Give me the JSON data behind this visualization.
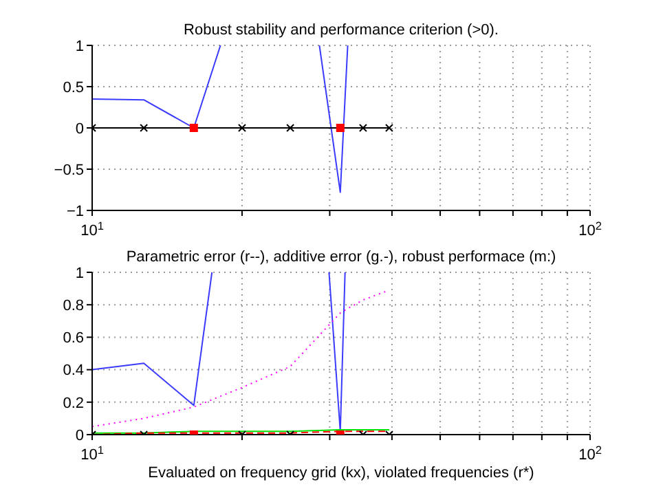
{
  "chart_data": [
    {
      "type": "line",
      "title": "Robust stability and performance criterion (>0).",
      "log": "x",
      "grid": true,
      "xlim": [
        10,
        100
      ],
      "xticks": [
        {
          "value": 10,
          "label": "10$^{1}$"
        },
        {
          "value": 20,
          "label": null
        },
        {
          "value": 30,
          "label": null
        },
        {
          "value": 40,
          "label": null
        },
        {
          "value": 50,
          "label": null
        },
        {
          "value": 60,
          "label": null
        },
        {
          "value": 70,
          "label": null
        },
        {
          "value": 80,
          "label": null
        },
        {
          "value": 90,
          "label": null
        },
        {
          "value": 100,
          "label": "10$^{2}$"
        }
      ],
      "ylim": [
        -1,
        1
      ],
      "yticks": [
        -1,
        -0.5,
        0,
        0.5,
        1
      ],
      "series": [
        {
          "type": "line",
          "color": "#3b3bff",
          "marker": "none",
          "line_style": "solid",
          "x": [
            10,
            12.7,
            16,
            18.1,
            20,
            25,
            28.6,
            31.5,
            32.6
          ],
          "values": [
            0.35,
            0.34,
            0,
            1,
            null,
            null,
            1,
            -0.78,
            1
          ]
        },
        {
          "type": "line",
          "color": "#000000",
          "marker": "cross",
          "line_style": "solid",
          "x": [
            10,
            12.7,
            16,
            20,
            25,
            31.5,
            35,
            39.5
          ],
          "values": [
            0,
            0,
            0,
            0,
            0,
            0,
            0,
            0
          ]
        },
        {
          "type": "scatter",
          "color": "#ff0000",
          "marker": "square",
          "x": [
            16,
            31.5
          ],
          "values": [
            0,
            0
          ]
        }
      ]
    },
    {
      "type": "line",
      "title": "Parametric error (r--), additive error (g.-), robust performace (m:)",
      "xlabel": "Evaluated on frequency grid (kx), violated frequencies (r*)",
      "log": "x",
      "grid": true,
      "xlim": [
        10,
        100
      ],
      "xticks": [
        {
          "value": 10,
          "label": "10$^{1}$"
        },
        {
          "value": 20,
          "label": null
        },
        {
          "value": 30,
          "label": null
        },
        {
          "value": 40,
          "label": null
        },
        {
          "value": 50,
          "label": null
        },
        {
          "value": 60,
          "label": null
        },
        {
          "value": 70,
          "label": null
        },
        {
          "value": 80,
          "label": null
        },
        {
          "value": 90,
          "label": null
        },
        {
          "value": 100,
          "label": "10$^{2}$"
        }
      ],
      "ylim": [
        0,
        1
      ],
      "yticks": [
        0,
        0.2,
        0.4,
        0.6,
        0.8,
        1
      ],
      "series": [
        {
          "type": "line",
          "color": "#3b3bff",
          "marker": "none",
          "line_style": "solid",
          "x": [
            10,
            12.7,
            16,
            17.4,
            20,
            25,
            29.9,
            31.5,
            32.2
          ],
          "values": [
            0.4,
            0.44,
            0.18,
            1,
            null,
            null,
            1,
            0.02,
            1
          ]
        },
        {
          "type": "line",
          "color": "#ff00ff",
          "marker": "none",
          "line_style": "dotted",
          "x": [
            10,
            12.7,
            16,
            20,
            25,
            31.5,
            35,
            39.5
          ],
          "values": [
            0.05,
            0.1,
            0.17,
            0.29,
            0.42,
            0.75,
            0.83,
            0.89
          ]
        },
        {
          "type": "line",
          "color": "#00e000",
          "marker": "none",
          "line_style": "solid",
          "x": [
            10,
            12.7,
            16,
            20,
            25,
            31.5,
            35,
            39.5
          ],
          "values": [
            0.01,
            0.01,
            0.02,
            0.02,
            0.02,
            0.03,
            0.03,
            0.03
          ]
        },
        {
          "type": "line",
          "color": "#ff0000",
          "marker": "none",
          "line_style": "dashed",
          "x": [
            10,
            12.7,
            16,
            20,
            25,
            31.5,
            35,
            39.5
          ],
          "values": [
            0,
            0.01,
            0.01,
            0.01,
            0.01,
            0.02,
            0.02,
            0.02
          ]
        },
        {
          "type": "scatter",
          "color": "#000000",
          "marker": "cross",
          "x": [
            10,
            12.7,
            20,
            25,
            35,
            39.5
          ],
          "values": [
            0,
            0,
            0,
            0,
            0,
            0
          ]
        },
        {
          "type": "scatter",
          "color": "#ff0000",
          "marker": "square",
          "x": [
            16,
            31.5
          ],
          "values": [
            0,
            0
          ]
        }
      ]
    }
  ]
}
